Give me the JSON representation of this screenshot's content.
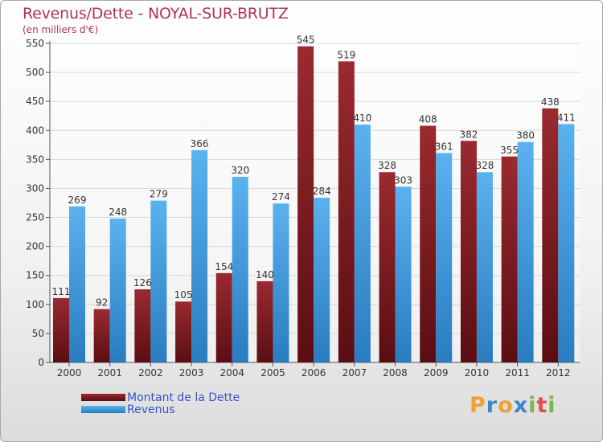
{
  "title": "Revenus/Dette - NOYAL-SUR-BRUTZ",
  "subtitle": "(en milliers d'€)",
  "logo": {
    "text": "Proxiti",
    "letters": [
      "P",
      "r",
      "o",
      "x",
      "i",
      "t",
      "i"
    ],
    "colors": [
      "#f0a030",
      "#3a86c8",
      "#f0a030",
      "#3a86c8",
      "#7ab648",
      "#e05050",
      "#7ab648"
    ]
  },
  "colors": {
    "dette": "#7a1c22",
    "revenus": "#3a96dc",
    "title": "#b03060",
    "legend_text": "#3355cc"
  },
  "chart_data": {
    "type": "bar",
    "title": "Revenus/Dette - NOYAL-SUR-BRUTZ",
    "subtitle": "(en milliers d'€)",
    "categories": [
      "2000",
      "2001",
      "2002",
      "2003",
      "2004",
      "2005",
      "2006",
      "2007",
      "2008",
      "2009",
      "2010",
      "2011",
      "2012"
    ],
    "series": [
      {
        "name": "Montant de la Dette",
        "values": [
          111,
          92,
          126,
          105,
          154,
          140,
          545,
          519,
          328,
          408,
          382,
          355,
          438
        ]
      },
      {
        "name": "Revenus",
        "values": [
          269,
          248,
          279,
          366,
          320,
          274,
          284,
          410,
          303,
          361,
          328,
          380,
          411
        ]
      }
    ],
    "ylim": [
      0,
      550
    ],
    "yticks": [
      0,
      50,
      100,
      150,
      200,
      250,
      300,
      350,
      400,
      450,
      500,
      550
    ],
    "grid": true,
    "legend": "bottom-left",
    "data_labels": true
  }
}
